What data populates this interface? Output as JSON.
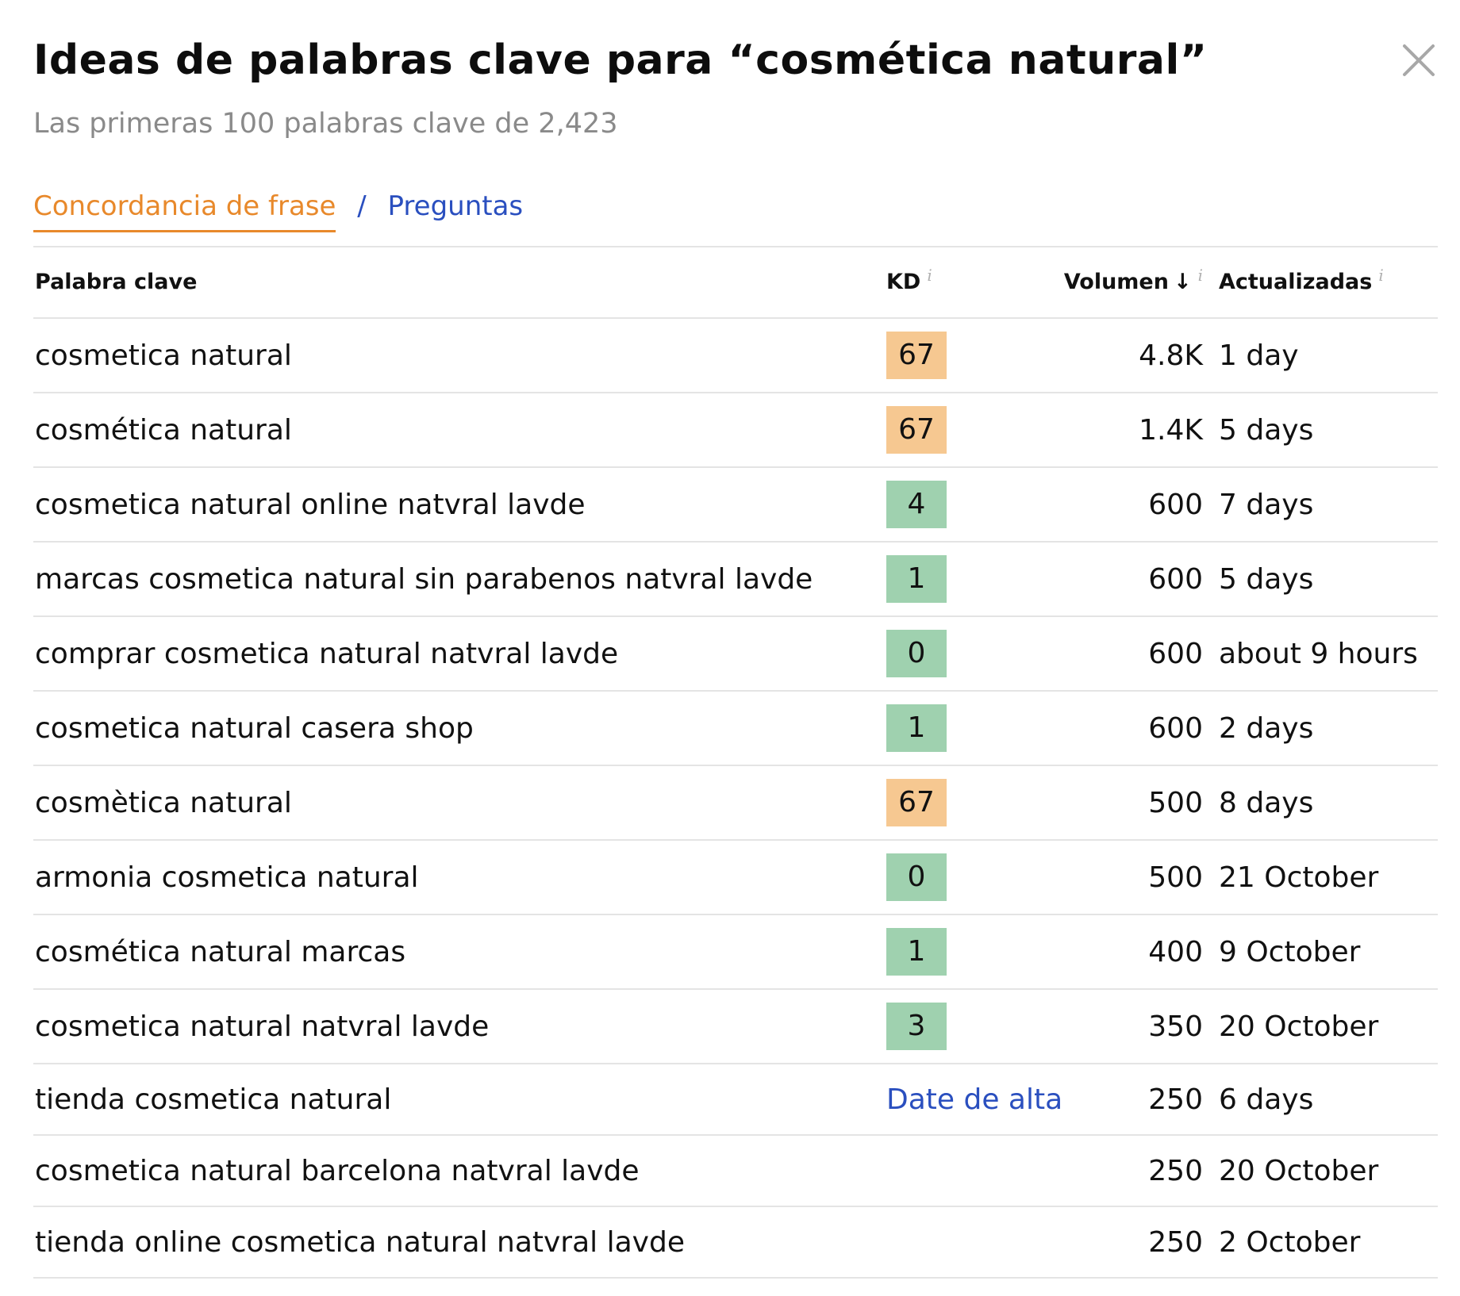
{
  "header": {
    "title": "Ideas de palabras clave para “cosmética natural”",
    "subtitle": "Las primeras 100 palabras clave de 2,423",
    "close_icon": "close-icon"
  },
  "tabs": {
    "active": "Concordancia de frase",
    "separator": "/",
    "other": "Preguntas"
  },
  "colors": {
    "kd_hard": "#f6c891",
    "kd_easy": "#9fd1af",
    "link": "#2a4fbf",
    "active_tab": "#e8892b"
  },
  "table": {
    "columns": {
      "keyword": "Palabra clave",
      "kd": "KD",
      "volume": "Volumen",
      "updated": "Actualizadas",
      "info_glyph": "i",
      "sort_glyph": "↓"
    },
    "rows": [
      {
        "keyword": "cosmetica natural",
        "kd": "67",
        "kd_level": "hard",
        "volume": "4.8K",
        "updated": "1 day"
      },
      {
        "keyword": "cosmética natural",
        "kd": "67",
        "kd_level": "hard",
        "volume": "1.4K",
        "updated": "5 days"
      },
      {
        "keyword": "cosmetica natural online natvral lavde",
        "kd": "4",
        "kd_level": "easy",
        "volume": "600",
        "updated": "7 days"
      },
      {
        "keyword": "marcas cosmetica natural sin parabenos natvral lavde",
        "kd": "1",
        "kd_level": "easy",
        "volume": "600",
        "updated": "5 days"
      },
      {
        "keyword": "comprar cosmetica natural natvral lavde",
        "kd": "0",
        "kd_level": "easy",
        "volume": "600",
        "updated": "about 9 hours"
      },
      {
        "keyword": "cosmetica natural casera shop",
        "kd": "1",
        "kd_level": "easy",
        "volume": "600",
        "updated": "2 days"
      },
      {
        "keyword": "cosmètica natural",
        "kd": "67",
        "kd_level": "hard",
        "volume": "500",
        "updated": "8 days"
      },
      {
        "keyword": "armonia cosmetica natural",
        "kd": "0",
        "kd_level": "easy",
        "volume": "500",
        "updated": "21 October"
      },
      {
        "keyword": "cosmética natural marcas",
        "kd": "1",
        "kd_level": "easy",
        "volume": "400",
        "updated": "9 October"
      },
      {
        "keyword": "cosmetica natural natvral lavde",
        "kd": "3",
        "kd_level": "easy",
        "volume": "350",
        "updated": "20 October"
      },
      {
        "keyword": "tienda cosmetica natural",
        "kd": "Date de alta",
        "kd_level": "link",
        "volume": "250",
        "updated": "6 days"
      },
      {
        "keyword": "cosmetica natural barcelona natvral lavde",
        "kd": "",
        "kd_level": "none",
        "volume": "250",
        "updated": "20 October"
      },
      {
        "keyword": "tienda online cosmetica natural natvral lavde",
        "kd": "",
        "kd_level": "none",
        "volume": "250",
        "updated": "2 October"
      }
    ]
  }
}
